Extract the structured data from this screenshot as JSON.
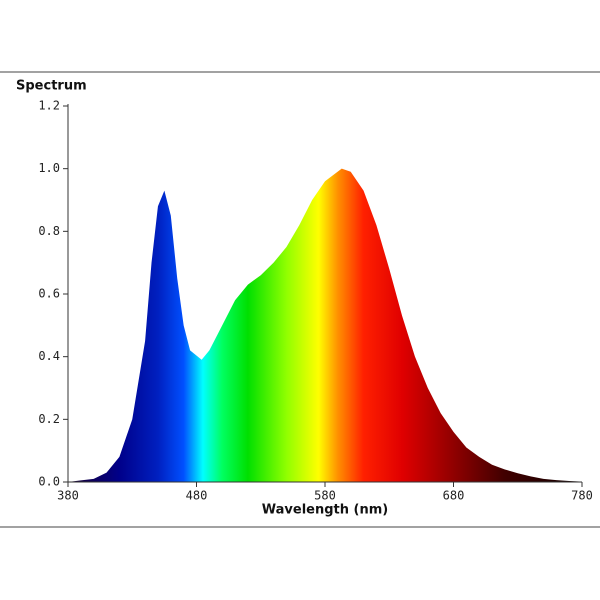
{
  "chart_data": {
    "type": "area",
    "title": "Spectrum",
    "x_label": "Wavelength (nm)",
    "x": [
      380,
      390,
      400,
      410,
      420,
      430,
      440,
      445,
      450,
      455,
      460,
      465,
      470,
      475,
      484,
      490,
      500,
      510,
      520,
      530,
      540,
      550,
      560,
      570,
      580,
      593,
      600,
      610,
      620,
      630,
      640,
      650,
      660,
      670,
      680,
      690,
      700,
      710,
      720,
      730,
      740,
      750,
      760,
      770,
      780
    ],
    "values": [
      0,
      0.005,
      0.01,
      0.03,
      0.08,
      0.2,
      0.45,
      0.7,
      0.88,
      0.93,
      0.85,
      0.65,
      0.5,
      0.42,
      0.39,
      0.42,
      0.5,
      0.58,
      0.63,
      0.66,
      0.7,
      0.75,
      0.82,
      0.9,
      0.96,
      1.0,
      0.99,
      0.93,
      0.82,
      0.68,
      0.53,
      0.4,
      0.3,
      0.22,
      0.16,
      0.11,
      0.08,
      0.055,
      0.04,
      0.028,
      0.018,
      0.01,
      0.006,
      0.003,
      0.001
    ],
    "color_stops": [
      {
        "x": 380,
        "color": "#1a0030"
      },
      {
        "x": 420,
        "color": "#00008a"
      },
      {
        "x": 450,
        "color": "#0020c0"
      },
      {
        "x": 470,
        "color": "#0050ff"
      },
      {
        "x": 485,
        "color": "#00ffff"
      },
      {
        "x": 500,
        "color": "#00ff60"
      },
      {
        "x": 520,
        "color": "#00e000"
      },
      {
        "x": 550,
        "color": "#90ff00"
      },
      {
        "x": 575,
        "color": "#ffff00"
      },
      {
        "x": 590,
        "color": "#ff9000"
      },
      {
        "x": 610,
        "color": "#ff2000"
      },
      {
        "x": 640,
        "color": "#e00000"
      },
      {
        "x": 680,
        "color": "#900000"
      },
      {
        "x": 720,
        "color": "#400000"
      },
      {
        "x": 780,
        "color": "#100000"
      }
    ],
    "xlim": [
      380,
      780
    ],
    "xticks": [
      380,
      480,
      580,
      680,
      780
    ],
    "ylim": [
      0,
      1.2
    ],
    "yticks": [
      {
        "value": 0,
        "label": "0.0"
      },
      {
        "value": 0.2,
        "label": "0.2"
      },
      {
        "value": 0.4,
        "label": "0.4"
      },
      {
        "value": 0.6,
        "label": "0.6"
      },
      {
        "value": 0.8,
        "label": "0.8"
      },
      {
        "value": 1.0,
        "label": "1.0"
      },
      {
        "value": 1.2,
        "label": "1.2"
      }
    ]
  }
}
